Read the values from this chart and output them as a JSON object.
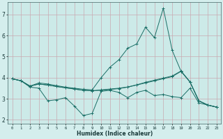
{
  "xlabel": "Humidex (Indice chaleur)",
  "background_color": "#d4eeed",
  "plot_bg_color": "#cceae8",
  "grid_color": "#c8a8b0",
  "line_color": "#1a6e66",
  "xlim": [
    -0.5,
    23.5
  ],
  "ylim": [
    1.8,
    7.6
  ],
  "yticks": [
    2,
    3,
    4,
    5,
    6,
    7
  ],
  "xticks": [
    0,
    1,
    2,
    3,
    4,
    5,
    6,
    7,
    8,
    9,
    10,
    11,
    12,
    13,
    14,
    15,
    16,
    17,
    18,
    19,
    20,
    21,
    22,
    23
  ],
  "series": [
    [
      0,
      3.95,
      1,
      3.85,
      2,
      3.55,
      3,
      3.5,
      4,
      2.9,
      5,
      2.95,
      6,
      3.05,
      7,
      2.65,
      8,
      2.2,
      9,
      2.3,
      10,
      3.35,
      11,
      3.4,
      12,
      3.3,
      13,
      3.05,
      14,
      3.3,
      15,
      3.4,
      16,
      3.15,
      17,
      3.2,
      18,
      3.1,
      19,
      3.05,
      20,
      3.5,
      21,
      2.8,
      22,
      2.7,
      23,
      2.6
    ],
    [
      0,
      3.95,
      1,
      3.85,
      2,
      3.6,
      3,
      3.7,
      4,
      3.65,
      5,
      3.58,
      6,
      3.52,
      7,
      3.46,
      8,
      3.4,
      9,
      3.38,
      10,
      3.4,
      11,
      3.44,
      12,
      3.48,
      13,
      3.55,
      14,
      3.65,
      15,
      3.75,
      16,
      3.85,
      17,
      3.95,
      18,
      4.05,
      19,
      4.3,
      20,
      3.8,
      21,
      2.9,
      22,
      2.7,
      23,
      2.6
    ],
    [
      0,
      3.95,
      1,
      3.85,
      2,
      3.6,
      3,
      3.7,
      4,
      3.65,
      5,
      3.58,
      6,
      3.52,
      7,
      3.46,
      8,
      3.4,
      9,
      3.38,
      10,
      3.42,
      11,
      3.46,
      12,
      3.5,
      13,
      3.56,
      14,
      3.66,
      15,
      3.78,
      16,
      3.88,
      17,
      3.98,
      18,
      4.08,
      19,
      4.32,
      20,
      3.8,
      21,
      2.9,
      22,
      2.7,
      23,
      2.6
    ],
    [
      0,
      3.95,
      1,
      3.85,
      2,
      3.6,
      3,
      3.75,
      4,
      3.7,
      5,
      3.62,
      6,
      3.55,
      7,
      3.5,
      8,
      3.45,
      9,
      3.42,
      10,
      4.0,
      11,
      4.5,
      12,
      4.85,
      13,
      5.4,
      14,
      5.6,
      15,
      6.4,
      16,
      5.9,
      17,
      7.3,
      18,
      5.3,
      19,
      4.3,
      20,
      3.8,
      21,
      2.9,
      22,
      2.7,
      23,
      2.6
    ]
  ]
}
